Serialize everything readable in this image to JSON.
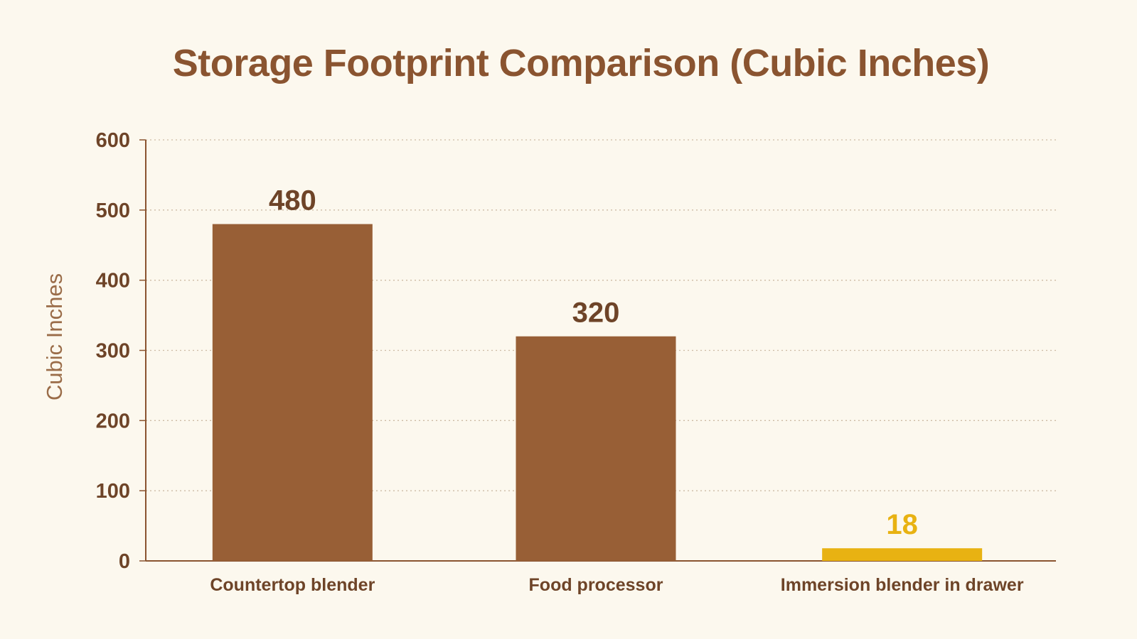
{
  "colors": {
    "background": "#fcf8ee",
    "title": "#8a5430",
    "bar": "#985f36",
    "highlight": "#e8b212",
    "axis": "#8a5430",
    "grid": "#cdbba5",
    "tick_text": "#6e4428",
    "ylabel_text": "#9a6c48"
  },
  "chart_data": {
    "type": "bar",
    "title": "Storage Footprint Comparison (Cubic Inches)",
    "xlabel": "",
    "ylabel": "Cubic Inches",
    "categories": [
      "Countertop blender",
      "Food processor",
      "Immersion blender in drawer"
    ],
    "values": [
      480,
      320,
      18
    ],
    "value_labels": [
      "480",
      "320",
      "18"
    ],
    "highlight_index": 2,
    "ylim": [
      0,
      600
    ],
    "yticks": [
      0,
      100,
      200,
      300,
      400,
      500,
      600
    ],
    "grid": true,
    "grid_style": "dotted horizontal"
  }
}
